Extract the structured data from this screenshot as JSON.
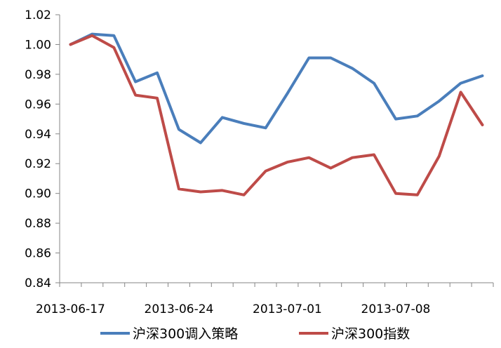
{
  "chart_data": {
    "type": "line",
    "title": "",
    "xlabel": "",
    "ylabel": "",
    "ylim": [
      0.84,
      1.02
    ],
    "ytick_step": 0.02,
    "ytick_labels": [
      "0.84",
      "0.86",
      "0.88",
      "0.90",
      "0.92",
      "0.94",
      "0.96",
      "0.98",
      "1.00",
      "1.02"
    ],
    "x": [
      "2013-06-17",
      "2013-06-18",
      "2013-06-19",
      "2013-06-20",
      "2013-06-21",
      "2013-06-24",
      "2013-06-25",
      "2013-06-26",
      "2013-06-27",
      "2013-06-28",
      "2013-07-01",
      "2013-07-02",
      "2013-07-03",
      "2013-07-04",
      "2013-07-05",
      "2013-07-08",
      "2013-07-09",
      "2013-07-10",
      "2013-07-11",
      "2013-07-12"
    ],
    "xtick_labels": [
      {
        "index": 0,
        "label": "2013-06-17"
      },
      {
        "index": 5,
        "label": "2013-06-24"
      },
      {
        "index": 10,
        "label": "2013-07-01"
      },
      {
        "index": 15,
        "label": "2013-07-08"
      }
    ],
    "grid": false,
    "legend_position": "bottom",
    "series": [
      {
        "name": "沪深300调入策略",
        "color": "#4a7ebb",
        "values": [
          1.0,
          1.007,
          1.006,
          0.975,
          0.981,
          0.943,
          0.934,
          0.951,
          0.947,
          0.944,
          0.967,
          0.991,
          0.991,
          0.984,
          0.974,
          0.95,
          0.952,
          0.962,
          0.974,
          0.979
        ]
      },
      {
        "name": "沪深300指数",
        "color": "#be4b48",
        "values": [
          1.0,
          1.006,
          0.998,
          0.966,
          0.964,
          0.903,
          0.901,
          0.902,
          0.899,
          0.915,
          0.921,
          0.924,
          0.917,
          0.924,
          0.926,
          0.9,
          0.899,
          0.925,
          0.968,
          0.946
        ]
      }
    ]
  }
}
